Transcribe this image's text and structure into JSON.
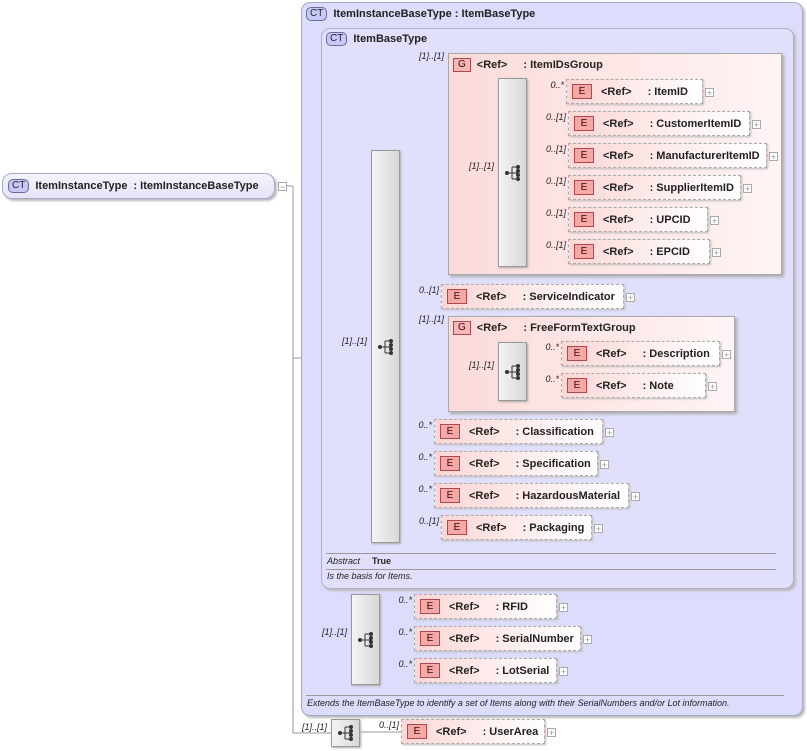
{
  "root": {
    "badge": "CT",
    "name": "ItemInstanceType",
    "base": ": ItemInstanceBaseType"
  },
  "outer": {
    "badge": "CT",
    "title": "ItemInstanceBaseType : ItemBaseType",
    "documentation": "Extends the ItemBaseType to identify a set of Items along with their SerialNumbers and/or Lot information.",
    "sequence_card": "[1]..[1]"
  },
  "item_base": {
    "badge": "CT",
    "title": "ItemBaseType",
    "sequence_card": "[1]..[1]",
    "abstract_label": "Abstract",
    "abstract_value": "True",
    "documentation": "Is the basis for Items.",
    "ids_group": {
      "badge": "G",
      "ref": "<Ref>",
      "name": ": ItemIDsGroup",
      "card": "[1]..[1]",
      "sequence_card": "[1]..[1]",
      "elements": [
        {
          "ref": "<Ref>",
          "name": ": ItemID",
          "card": "0..*"
        },
        {
          "ref": "<Ref>",
          "name": ": CustomerItemID",
          "card": "0..[1]"
        },
        {
          "ref": "<Ref>",
          "name": ": ManufacturerItemID",
          "card": "0..[1]"
        },
        {
          "ref": "<Ref>",
          "name": ": SupplierItemID",
          "card": "0..[1]"
        },
        {
          "ref": "<Ref>",
          "name": ": UPCID",
          "card": "0..[1]"
        },
        {
          "ref": "<Ref>",
          "name": ": EPCID",
          "card": "0..[1]"
        }
      ]
    },
    "service_indicator": {
      "ref": "<Ref>",
      "name": ": ServiceIndicator",
      "card": "0..[1]"
    },
    "freeform_group": {
      "badge": "G",
      "ref": "<Ref>",
      "name": ": FreeFormTextGroup",
      "card": "[1]..[1]",
      "sequence_card": "[1]..[1]",
      "elements": [
        {
          "ref": "<Ref>",
          "name": ": Description",
          "card": "0..*"
        },
        {
          "ref": "<Ref>",
          "name": ": Note",
          "card": "0..*"
        }
      ]
    },
    "tail_elements": [
      {
        "ref": "<Ref>",
        "name": ": Classification",
        "card": "0..*"
      },
      {
        "ref": "<Ref>",
        "name": ": Specification",
        "card": "0..*"
      },
      {
        "ref": "<Ref>",
        "name": ": HazardousMaterial",
        "card": "0..*"
      },
      {
        "ref": "<Ref>",
        "name": ": Packaging",
        "card": "0..[1]"
      }
    ]
  },
  "instance_elements": [
    {
      "ref": "<Ref>",
      "name": ": RFID",
      "card": "0..*"
    },
    {
      "ref": "<Ref>",
      "name": ": SerialNumber",
      "card": "0..*"
    },
    {
      "ref": "<Ref>",
      "name": ": LotSerial",
      "card": "0..*"
    }
  ],
  "bottom": {
    "sequence_card": "[1]..[1]",
    "element": {
      "ref": "<Ref>",
      "name": ": UserArea",
      "card": "0..[1]"
    }
  },
  "icons": {
    "element": "E",
    "group": "G",
    "sequence": "sequence-icon",
    "expand": "plus-icon",
    "collapse": "minus-icon"
  }
}
